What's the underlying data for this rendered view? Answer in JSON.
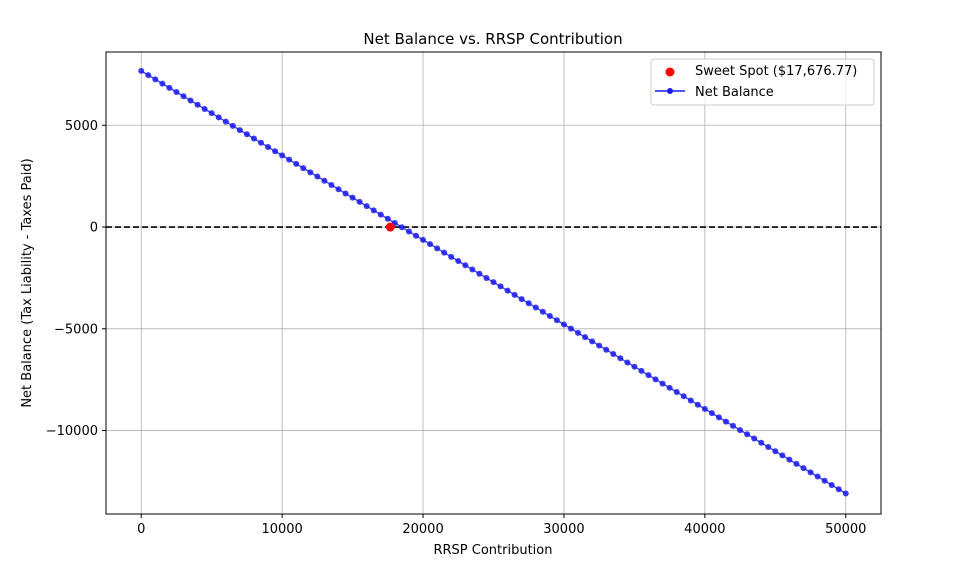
{
  "chart_data": {
    "type": "line",
    "title": "Net Balance vs. RRSP Contribution",
    "xlabel": "RRSP Contribution",
    "ylabel": "Net Balance (Tax Liability - Taxes Paid)",
    "xlim": [
      -2500,
      52500
    ],
    "ylim": [
      -14100,
      8600
    ],
    "xticks": [
      0,
      10000,
      20000,
      30000,
      40000,
      50000
    ],
    "xtick_labels": [
      "0",
      "10000",
      "20000",
      "30000",
      "40000",
      "50000"
    ],
    "yticks": [
      5000,
      0,
      -5000,
      -10000
    ],
    "ytick_labels": [
      "5000",
      "0",
      "−5000",
      "−10000"
    ],
    "grid": true,
    "legend_position": "top-right",
    "reference_line": {
      "y": 0,
      "style": "dashed",
      "color": "#000000"
    },
    "series": [
      {
        "name": "Net Balance",
        "color": "#0000ee",
        "marker": "circle",
        "x_start": 0,
        "x_end": 50000,
        "point_count": 101,
        "y_start": 7670,
        "y_end": 13090,
        "y_end_sign": -1
      }
    ],
    "highlight": {
      "name": "Sweet Spot ($17,676.77)",
      "x": 17676.77,
      "y": 0,
      "color": "#ff0000"
    }
  }
}
